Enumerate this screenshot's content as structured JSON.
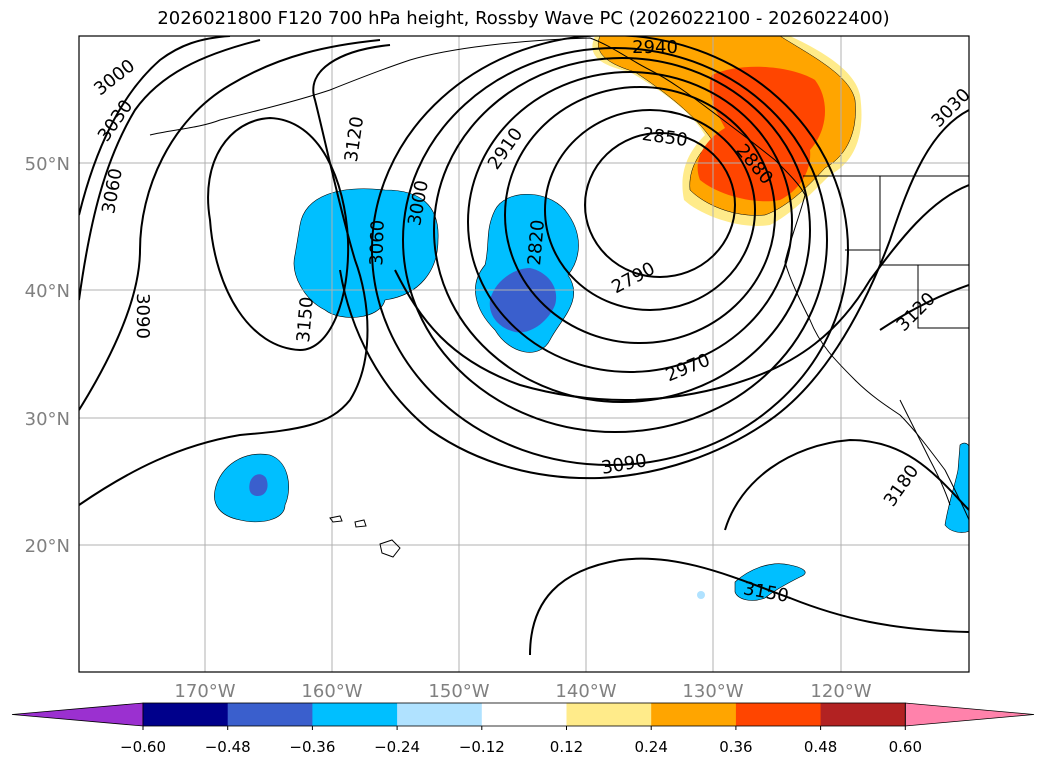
{
  "title": "2026021800 F120 700 hPa height, Rossby Wave PC (2026022100 - 2026022400)",
  "lat_labels": [
    "50°N",
    "40°N",
    "30°N",
    "20°N"
  ],
  "lon_labels": [
    "170°W",
    "160°W",
    "150°W",
    "140°W",
    "130°W",
    "120°W"
  ],
  "contour_labels": [
    "3000",
    "3030",
    "3060",
    "3090",
    "3120",
    "3150",
    "3060",
    "3000",
    "2910",
    "2820",
    "2850",
    "2790",
    "2970",
    "3090",
    "2880",
    "3180",
    "3150",
    "3120",
    "3030",
    "2940"
  ],
  "colorbar": {
    "ticks": [
      "−0.60",
      "−0.48",
      "−0.36",
      "−0.24",
      "−0.12",
      "0.12",
      "0.24",
      "0.36",
      "0.48",
      "0.60"
    ],
    "colors": [
      "#9b30d0",
      "#00008b",
      "#3a5fcd",
      "#00bfff",
      "#b0e2ff",
      "#ffffff",
      "#ffeb8a",
      "#ffa500",
      "#ff4500",
      "#b22222",
      "#ff82ab"
    ]
  }
}
